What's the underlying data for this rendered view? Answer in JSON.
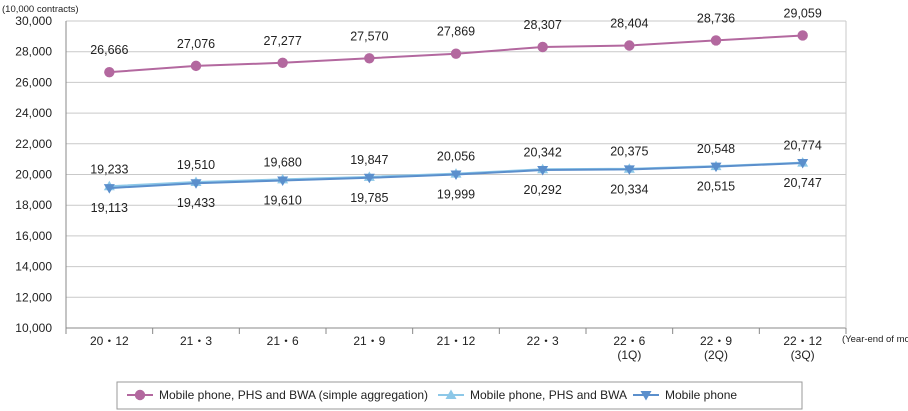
{
  "chart_data": {
    "type": "line",
    "ylabel": "(10,000 contracts)",
    "xlabel": "(Year-end of month)",
    "ylim": [
      10000,
      30000
    ],
    "yticks": [
      "10,000",
      "12,000",
      "14,000",
      "16,000",
      "18,000",
      "20,000",
      "22,000",
      "24,000",
      "26,000",
      "28,000",
      "30,000"
    ],
    "categories": [
      [
        "20・12"
      ],
      [
        "21・3"
      ],
      [
        "21・6"
      ],
      [
        "21・9"
      ],
      [
        "21・12"
      ],
      [
        "22・3"
      ],
      [
        "22・6",
        "(1Q)"
      ],
      [
        "22・9",
        "(2Q)"
      ],
      [
        "22・12",
        "(3Q)"
      ]
    ],
    "grid": true,
    "legend_position": "bottom",
    "series": [
      {
        "name": "Mobile phone, PHS and BWA (simple aggregation)",
        "color": "#b3689f",
        "marker": "circle",
        "values": [
          26666,
          27076,
          27277,
          27570,
          27869,
          28307,
          28404,
          28736,
          29059
        ],
        "labels": [
          "26,666",
          "27,076",
          "27,277",
          "27,570",
          "27,869",
          "28,307",
          "28,404",
          "28,736",
          "29,059"
        ]
      },
      {
        "name": "Mobile phone, PHS and BWA",
        "color": "#8dc8e8",
        "marker": "triangle-up",
        "values": [
          19233,
          19510,
          19680,
          19847,
          20056,
          20342,
          20375,
          20548,
          20774
        ],
        "labels": [
          "19,233",
          "19,510",
          "19,680",
          "19,847",
          "20,056",
          "20,342",
          "20,375",
          "20,548",
          "20,774"
        ]
      },
      {
        "name": "Mobile phone",
        "color": "#5b8fcc",
        "marker": "triangle-down",
        "values": [
          19113,
          19433,
          19610,
          19785,
          19999,
          20292,
          20334,
          20515,
          20747
        ],
        "labels": [
          "19,113",
          "19,433",
          "19,610",
          "19,785",
          "19,999",
          "20,292",
          "20,334",
          "20,515",
          "20,747"
        ]
      }
    ]
  }
}
